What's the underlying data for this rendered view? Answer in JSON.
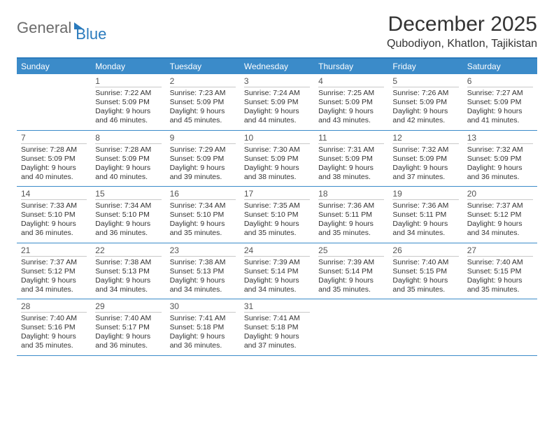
{
  "logo": {
    "text1": "General",
    "text2": "Blue"
  },
  "title": "December 2025",
  "location": "Qubodiyon, Khatlon, Tajikistan",
  "dow": [
    "Sunday",
    "Monday",
    "Tuesday",
    "Wednesday",
    "Thursday",
    "Friday",
    "Saturday"
  ],
  "colors": {
    "header_bg": "#3b8bc9",
    "header_text": "#ffffff",
    "rule": "#3b8bc9",
    "day_rule": "#c9c9c9",
    "text": "#333333",
    "logo_gray": "#6b6b6b",
    "logo_blue": "#2b7bbd"
  },
  "weeks": [
    [
      {
        "day": "",
        "sunrise": "",
        "sunset": "",
        "daylight": ""
      },
      {
        "day": "1",
        "sunrise": "7:22 AM",
        "sunset": "5:09 PM",
        "daylight": "9 hours and 46 minutes."
      },
      {
        "day": "2",
        "sunrise": "7:23 AM",
        "sunset": "5:09 PM",
        "daylight": "9 hours and 45 minutes."
      },
      {
        "day": "3",
        "sunrise": "7:24 AM",
        "sunset": "5:09 PM",
        "daylight": "9 hours and 44 minutes."
      },
      {
        "day": "4",
        "sunrise": "7:25 AM",
        "sunset": "5:09 PM",
        "daylight": "9 hours and 43 minutes."
      },
      {
        "day": "5",
        "sunrise": "7:26 AM",
        "sunset": "5:09 PM",
        "daylight": "9 hours and 42 minutes."
      },
      {
        "day": "6",
        "sunrise": "7:27 AM",
        "sunset": "5:09 PM",
        "daylight": "9 hours and 41 minutes."
      }
    ],
    [
      {
        "day": "7",
        "sunrise": "7:28 AM",
        "sunset": "5:09 PM",
        "daylight": "9 hours and 40 minutes."
      },
      {
        "day": "8",
        "sunrise": "7:28 AM",
        "sunset": "5:09 PM",
        "daylight": "9 hours and 40 minutes."
      },
      {
        "day": "9",
        "sunrise": "7:29 AM",
        "sunset": "5:09 PM",
        "daylight": "9 hours and 39 minutes."
      },
      {
        "day": "10",
        "sunrise": "7:30 AM",
        "sunset": "5:09 PM",
        "daylight": "9 hours and 38 minutes."
      },
      {
        "day": "11",
        "sunrise": "7:31 AM",
        "sunset": "5:09 PM",
        "daylight": "9 hours and 38 minutes."
      },
      {
        "day": "12",
        "sunrise": "7:32 AM",
        "sunset": "5:09 PM",
        "daylight": "9 hours and 37 minutes."
      },
      {
        "day": "13",
        "sunrise": "7:32 AM",
        "sunset": "5:09 PM",
        "daylight": "9 hours and 36 minutes."
      }
    ],
    [
      {
        "day": "14",
        "sunrise": "7:33 AM",
        "sunset": "5:10 PM",
        "daylight": "9 hours and 36 minutes."
      },
      {
        "day": "15",
        "sunrise": "7:34 AM",
        "sunset": "5:10 PM",
        "daylight": "9 hours and 36 minutes."
      },
      {
        "day": "16",
        "sunrise": "7:34 AM",
        "sunset": "5:10 PM",
        "daylight": "9 hours and 35 minutes."
      },
      {
        "day": "17",
        "sunrise": "7:35 AM",
        "sunset": "5:10 PM",
        "daylight": "9 hours and 35 minutes."
      },
      {
        "day": "18",
        "sunrise": "7:36 AM",
        "sunset": "5:11 PM",
        "daylight": "9 hours and 35 minutes."
      },
      {
        "day": "19",
        "sunrise": "7:36 AM",
        "sunset": "5:11 PM",
        "daylight": "9 hours and 34 minutes."
      },
      {
        "day": "20",
        "sunrise": "7:37 AM",
        "sunset": "5:12 PM",
        "daylight": "9 hours and 34 minutes."
      }
    ],
    [
      {
        "day": "21",
        "sunrise": "7:37 AM",
        "sunset": "5:12 PM",
        "daylight": "9 hours and 34 minutes."
      },
      {
        "day": "22",
        "sunrise": "7:38 AM",
        "sunset": "5:13 PM",
        "daylight": "9 hours and 34 minutes."
      },
      {
        "day": "23",
        "sunrise": "7:38 AM",
        "sunset": "5:13 PM",
        "daylight": "9 hours and 34 minutes."
      },
      {
        "day": "24",
        "sunrise": "7:39 AM",
        "sunset": "5:14 PM",
        "daylight": "9 hours and 34 minutes."
      },
      {
        "day": "25",
        "sunrise": "7:39 AM",
        "sunset": "5:14 PM",
        "daylight": "9 hours and 35 minutes."
      },
      {
        "day": "26",
        "sunrise": "7:40 AM",
        "sunset": "5:15 PM",
        "daylight": "9 hours and 35 minutes."
      },
      {
        "day": "27",
        "sunrise": "7:40 AM",
        "sunset": "5:15 PM",
        "daylight": "9 hours and 35 minutes."
      }
    ],
    [
      {
        "day": "28",
        "sunrise": "7:40 AM",
        "sunset": "5:16 PM",
        "daylight": "9 hours and 35 minutes."
      },
      {
        "day": "29",
        "sunrise": "7:40 AM",
        "sunset": "5:17 PM",
        "daylight": "9 hours and 36 minutes."
      },
      {
        "day": "30",
        "sunrise": "7:41 AM",
        "sunset": "5:18 PM",
        "daylight": "9 hours and 36 minutes."
      },
      {
        "day": "31",
        "sunrise": "7:41 AM",
        "sunset": "5:18 PM",
        "daylight": "9 hours and 37 minutes."
      },
      {
        "day": "",
        "sunrise": "",
        "sunset": "",
        "daylight": ""
      },
      {
        "day": "",
        "sunrise": "",
        "sunset": "",
        "daylight": ""
      },
      {
        "day": "",
        "sunrise": "",
        "sunset": "",
        "daylight": ""
      }
    ]
  ],
  "labels": {
    "sunrise": "Sunrise:",
    "sunset": "Sunset:",
    "daylight": "Daylight:"
  }
}
